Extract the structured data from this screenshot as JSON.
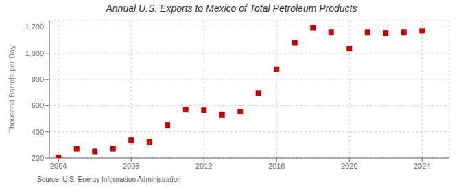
{
  "chart_data": {
    "type": "scatter",
    "title": "Annual U.S. Exports to Mexico of Total Petroleum Products",
    "y_label": "Thousand Barrels per Day",
    "annotations": [
      "Source: U.S. Energy Information Administration"
    ],
    "x": [
      2004,
      2005,
      2006,
      2007,
      2008,
      2009,
      2010,
      2011,
      2012,
      2013,
      2014,
      2015,
      2016,
      2017,
      2018,
      2019,
      2020,
      2021,
      2022,
      2023,
      2024
    ],
    "values": [
      205,
      270,
      250,
      270,
      335,
      320,
      450,
      570,
      565,
      530,
      555,
      695,
      875,
      1080,
      1195,
      1160,
      1035,
      1160,
      1155,
      1160,
      1170
    ],
    "color": "#cc0000",
    "marker": "square",
    "xlim": [
      2003.5,
      2025.5
    ],
    "ylim": [
      200,
      1250
    ],
    "xticks": [
      2004,
      2008,
      2012,
      2016,
      2020,
      2024
    ],
    "yticks": [
      200,
      400,
      600,
      800,
      {
        "value": 1000,
        "label": "1,000"
      },
      {
        "value": 1200,
        "label": "1,200"
      }
    ],
    "grid": true
  }
}
